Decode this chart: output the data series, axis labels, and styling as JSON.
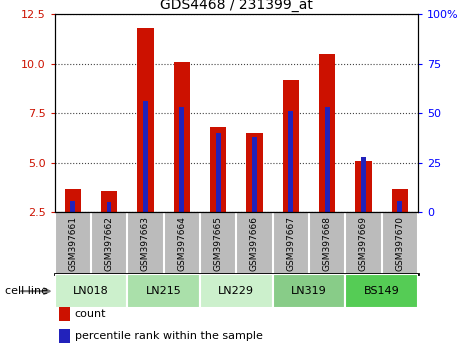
{
  "title": "GDS4468 / 231399_at",
  "samples": [
    "GSM397661",
    "GSM397662",
    "GSM397663",
    "GSM397664",
    "GSM397665",
    "GSM397666",
    "GSM397667",
    "GSM397668",
    "GSM397669",
    "GSM397670"
  ],
  "count_values": [
    3.7,
    3.6,
    11.8,
    10.1,
    6.8,
    6.5,
    9.2,
    10.5,
    5.1,
    3.7
  ],
  "percentile_values": [
    3.1,
    3.0,
    8.1,
    7.8,
    6.5,
    6.3,
    7.6,
    7.8,
    5.3,
    3.1
  ],
  "left_ylim": [
    2.5,
    12.5
  ],
  "left_yticks": [
    2.5,
    5.0,
    7.5,
    10.0,
    12.5
  ],
  "right_ylim": [
    0,
    100
  ],
  "right_yticks": [
    0,
    25,
    50,
    75,
    100
  ],
  "right_yticklabels": [
    "0",
    "25",
    "50",
    "75",
    "100%"
  ],
  "count_color": "#cc1100",
  "percentile_color": "#2222bb",
  "red_bar_width": 0.45,
  "blue_bar_width": 0.13,
  "grid_color": "#444444",
  "sample_bg": "#bbbbbb",
  "cell_lines_info": [
    {
      "name": "LN018",
      "start": 0,
      "end": 1,
      "color": "#ccf0cc"
    },
    {
      "name": "LN215",
      "start": 2,
      "end": 3,
      "color": "#aae0aa"
    },
    {
      "name": "LN229",
      "start": 4,
      "end": 5,
      "color": "#ccf0cc"
    },
    {
      "name": "LN319",
      "start": 6,
      "end": 7,
      "color": "#88cc88"
    },
    {
      "name": "BS149",
      "start": 8,
      "end": 9,
      "color": "#55cc55"
    }
  ],
  "legend_count": "count",
  "legend_percentile": "percentile rank within the sample",
  "cell_line_label": "cell line"
}
